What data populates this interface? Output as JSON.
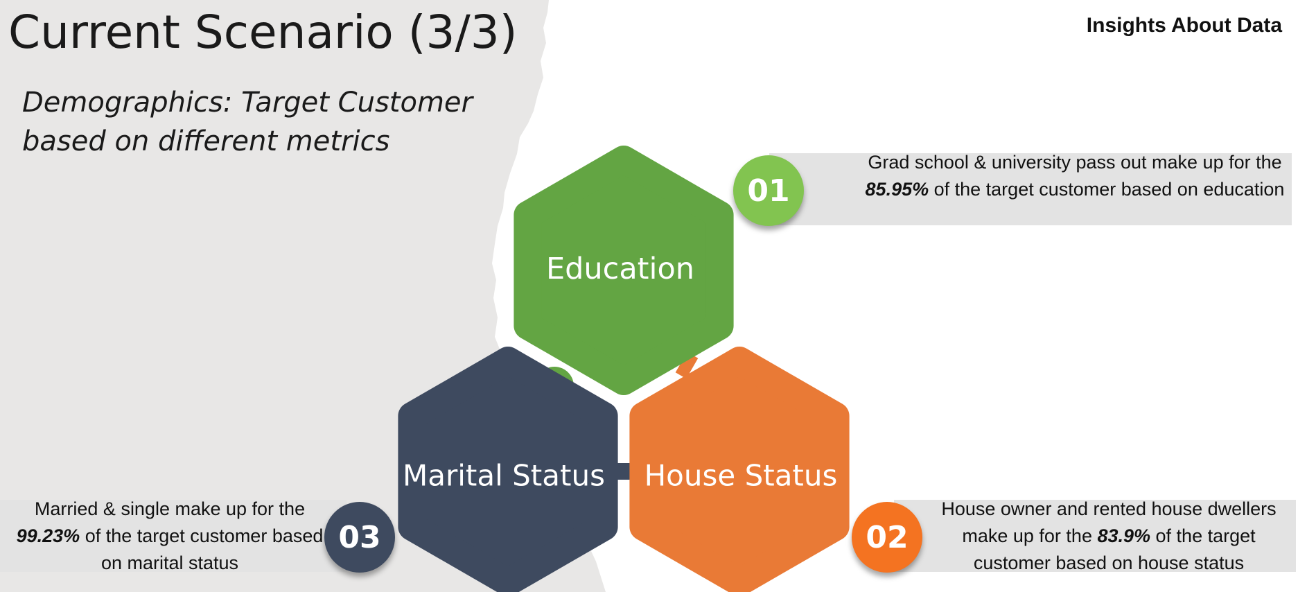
{
  "slide": {
    "title": "Current Scenario (3/3)",
    "subtitle": "Demographics: Target Customer based on different metrics",
    "header_label": "Insights About Data"
  },
  "segments": [
    {
      "id": "education",
      "label": "Education",
      "number": "01",
      "color": "#63a543",
      "badge_color": "#82c450",
      "insight": {
        "before": "Grad school & university pass out make up for the ",
        "value": "85.95%",
        "after": " of the target customer based on education"
      }
    },
    {
      "id": "house-status",
      "label": "House Status",
      "number": "02",
      "color": "#e97a36",
      "badge_color": "#f47321",
      "insight": {
        "before": "House owner and rented house dwellers make up for the ",
        "value": "83.9%",
        "after": " of the target customer based on house status"
      }
    },
    {
      "id": "marital-status",
      "label": "Marital Status",
      "number": "03",
      "color": "#3e4a5f",
      "badge_color": "#3e4a5f",
      "insight": {
        "before": "Married & single make up for the ",
        "value": "99.23%",
        "after": " of the target customer based on marital status"
      }
    }
  ],
  "colors": {
    "left_panel": "#e8e7e6",
    "insight_box": "#e3e3e3"
  }
}
